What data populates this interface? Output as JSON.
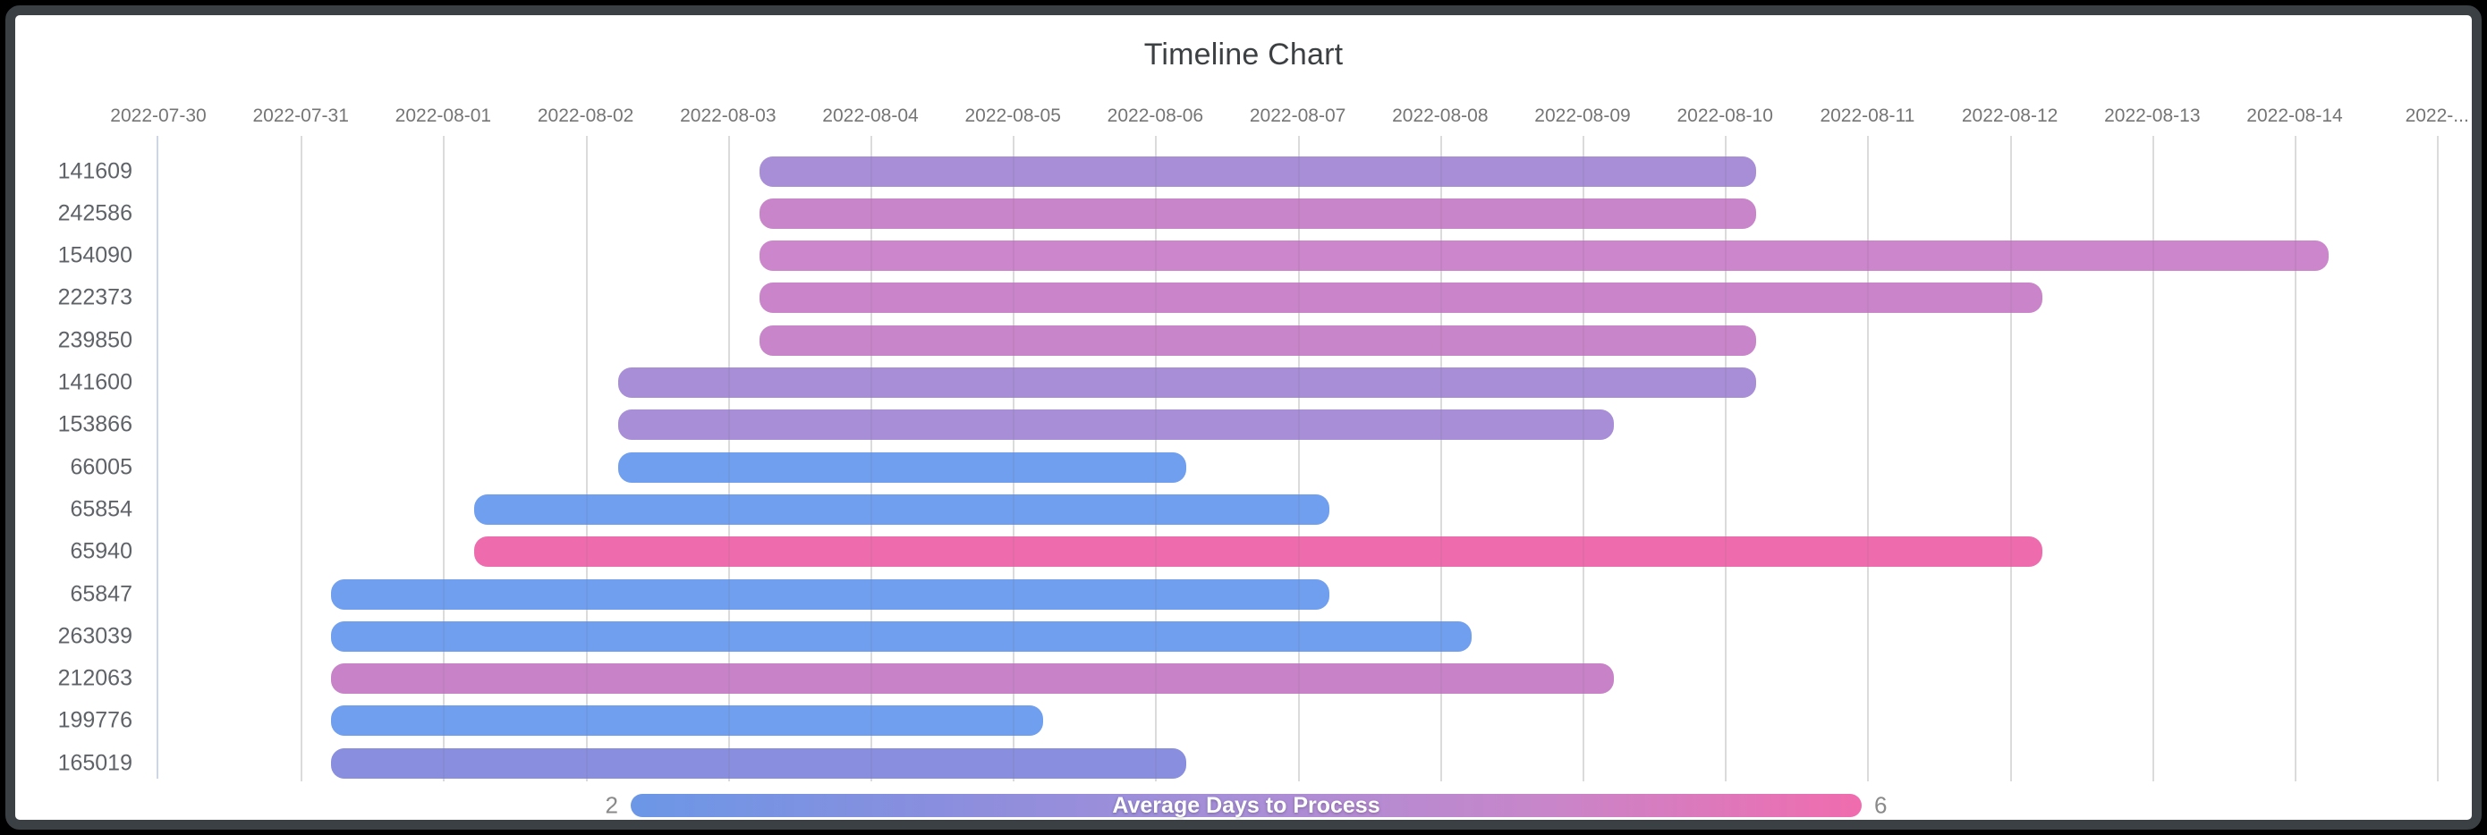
{
  "frame": {
    "outer_background": "#000000",
    "frame_color": "#3b4045",
    "card_background": "#ffffff"
  },
  "styles": {
    "title_color": "#3c4043",
    "tick_label_color": "#757575",
    "row_label_color": "#5f6368",
    "grid_color": "#e7e7e7",
    "axis_line_color": "#cbd5ec",
    "legend_number_color": "#8a8a8a"
  },
  "chart_data": {
    "type": "bar",
    "variant": "timeline-gantt",
    "title": "Timeline Chart",
    "grid": true,
    "x_axis": {
      "tick_labels": [
        "2022-07-30",
        "2022-07-31",
        "2022-08-01",
        "2022-08-02",
        "2022-08-03",
        "2022-08-04",
        "2022-08-05",
        "2022-08-06",
        "2022-08-07",
        "2022-08-08",
        "2022-08-09",
        "2022-08-10",
        "2022-08-11",
        "2022-08-12",
        "2022-08-13",
        "2022-08-14",
        "2022-..."
      ],
      "range_days": [
        0,
        16.35
      ]
    },
    "legend": {
      "position": "bottom",
      "title": "Average Days to Process",
      "min_label": "2",
      "max_label": "6",
      "scale_min": 2,
      "scale_max": 6,
      "gradient": [
        "#6b97e6",
        "#8a8ede",
        "#a88ed7",
        "#c985c9",
        "#f06cae"
      ]
    },
    "rows": [
      {
        "id": "141609",
        "start_date": "2022-08-03",
        "end_date": "2022-08-10",
        "day_start": 4.22,
        "day_end": 11.22,
        "duration_days": 7,
        "avg_days_to_process": 4,
        "color": "#a88ed7"
      },
      {
        "id": "242586",
        "start_date": "2022-08-03",
        "end_date": "2022-08-10",
        "day_start": 4.22,
        "day_end": 11.22,
        "duration_days": 7,
        "avg_days_to_process": 5,
        "color": "#c985c9"
      },
      {
        "id": "154090",
        "start_date": "2022-08-03",
        "end_date": "2022-08-14",
        "day_start": 4.22,
        "day_end": 15.24,
        "duration_days": 11,
        "avg_days_to_process": 5,
        "color": "#cc86cc"
      },
      {
        "id": "222373",
        "start_date": "2022-08-03",
        "end_date": "2022-08-12",
        "day_start": 4.22,
        "day_end": 13.23,
        "duration_days": 9,
        "avg_days_to_process": 5,
        "color": "#ca85ca"
      },
      {
        "id": "239850",
        "start_date": "2022-08-03",
        "end_date": "2022-08-10",
        "day_start": 4.22,
        "day_end": 11.22,
        "duration_days": 7,
        "avg_days_to_process": 5,
        "color": "#c985c9"
      },
      {
        "id": "141600",
        "start_date": "2022-08-02",
        "end_date": "2022-08-10",
        "day_start": 3.23,
        "day_end": 11.22,
        "duration_days": 8,
        "avg_days_to_process": 4,
        "color": "#a88ed7"
      },
      {
        "id": "153866",
        "start_date": "2022-08-02",
        "end_date": "2022-08-09",
        "day_start": 3.23,
        "day_end": 10.22,
        "duration_days": 7,
        "avg_days_to_process": 4,
        "color": "#a88ed7"
      },
      {
        "id": "66005",
        "start_date": "2022-08-02",
        "end_date": "2022-08-06",
        "day_start": 3.23,
        "day_end": 7.22,
        "duration_days": 4,
        "avg_days_to_process": 2,
        "color": "#6f9fee"
      },
      {
        "id": "65854",
        "start_date": "2022-08-01",
        "end_date": "2022-08-07",
        "day_start": 2.22,
        "day_end": 8.22,
        "duration_days": 6,
        "avg_days_to_process": 2,
        "color": "#6f9fee"
      },
      {
        "id": "65940",
        "start_date": "2022-08-01",
        "end_date": "2022-08-12",
        "day_start": 2.22,
        "day_end": 13.23,
        "duration_days": 11,
        "avg_days_to_process": 6,
        "color": "#ee6cae"
      },
      {
        "id": "65847",
        "start_date": "2022-07-31",
        "end_date": "2022-08-07",
        "day_start": 1.21,
        "day_end": 8.22,
        "duration_days": 7,
        "avg_days_to_process": 2,
        "color": "#6f9fee"
      },
      {
        "id": "263039",
        "start_date": "2022-07-31",
        "end_date": "2022-08-08",
        "day_start": 1.21,
        "day_end": 9.22,
        "duration_days": 8,
        "avg_days_to_process": 2,
        "color": "#6f9fee"
      },
      {
        "id": "212063",
        "start_date": "2022-07-31",
        "end_date": "2022-08-09",
        "day_start": 1.21,
        "day_end": 10.22,
        "duration_days": 9,
        "avg_days_to_process": 5,
        "color": "#c883c8"
      },
      {
        "id": "199776",
        "start_date": "2022-07-31",
        "end_date": "2022-08-05",
        "day_start": 1.21,
        "day_end": 6.21,
        "duration_days": 5,
        "avg_days_to_process": 2,
        "color": "#6f9fee"
      },
      {
        "id": "165019",
        "start_date": "2022-07-31",
        "end_date": "2022-08-06",
        "day_start": 1.21,
        "day_end": 7.22,
        "duration_days": 6,
        "avg_days_to_process": 3,
        "color": "#8a8ede"
      }
    ]
  }
}
